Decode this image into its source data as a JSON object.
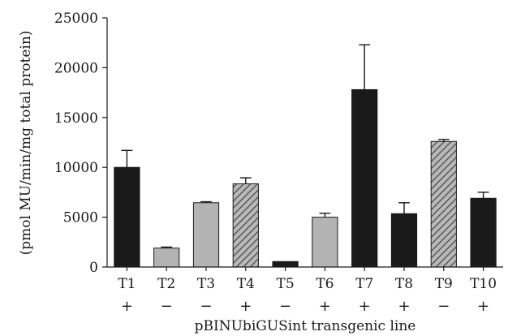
{
  "chart_data": {
    "type": "bar",
    "xlabel": "pBINUbiGUSint transgenic line",
    "ylabel": "(pmol MU/min/mg total protein)",
    "ylim": [
      0,
      25000
    ],
    "yticks": [
      0,
      5000,
      10000,
      15000,
      20000,
      25000
    ],
    "grid": false,
    "categories": [
      "T1",
      "T2",
      "T3",
      "T4",
      "T5",
      "T6",
      "T7",
      "T8",
      "T9",
      "T10"
    ],
    "signs": [
      "+",
      "−",
      "−",
      "+",
      "−",
      "+",
      "+",
      "+",
      "−",
      "+"
    ],
    "values": [
      10000,
      1900,
      6450,
      8350,
      550,
      5000,
      17800,
      5350,
      12600,
      6900
    ],
    "errors": [
      1700,
      100,
      100,
      600,
      0,
      400,
      4500,
      1100,
      200,
      600
    ],
    "fills": [
      "solid-dark",
      "light-gray",
      "light-gray",
      "hatched",
      "solid-dark",
      "light-gray",
      "solid-dark",
      "solid-dark",
      "hatched",
      "solid-dark"
    ],
    "colors": {
      "dark": "#1a1a1a",
      "light": "#b3b3b3",
      "hatch_bg": "#b8b8b8",
      "hatch_line": "#3a3a3a"
    }
  }
}
